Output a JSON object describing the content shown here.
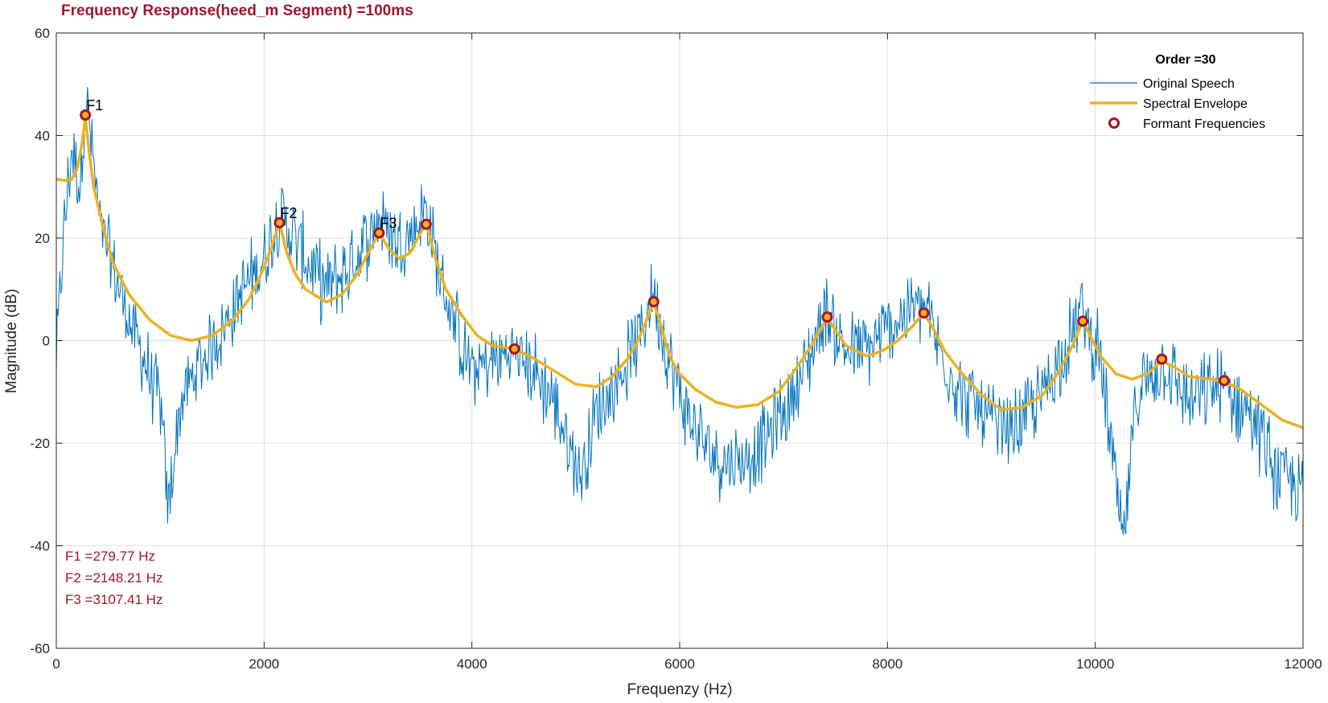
{
  "chart_data": {
    "type": "line",
    "title": "Frequency Response(heed_m Segment) =100ms",
    "xlabel": "Frequenzy (Hz)",
    "ylabel": "Magnitude (dB)",
    "xlim": [
      0,
      12000
    ],
    "ylim": [
      -60,
      60
    ],
    "xticks": [
      0,
      2000,
      4000,
      6000,
      8000,
      10000,
      12000
    ],
    "xtick_labels": [
      "0",
      "2000",
      "4000",
      "6000",
      "8000",
      "10000",
      "12000"
    ],
    "yticks": [
      -60,
      -40,
      -20,
      0,
      20,
      40,
      60
    ],
    "ytick_labels": [
      "-60",
      "-40",
      "-20",
      "0",
      "20",
      "40",
      "60"
    ],
    "grid": true,
    "legend": {
      "title": "Order =30",
      "placement": "top-right",
      "entries": [
        "Original Speech",
        "Spectral Envelope",
        "Formant Frequencies"
      ]
    },
    "series": [
      {
        "name": "Original Speech",
        "color": "#0072bd",
        "kind": "noisy-spectrum",
        "anchors": [
          [
            0,
            -4
          ],
          [
            60,
            18
          ],
          [
            150,
            38
          ],
          [
            230,
            30
          ],
          [
            279.77,
            48
          ],
          [
            330,
            40
          ],
          [
            420,
            22
          ],
          [
            550,
            14
          ],
          [
            700,
            4
          ],
          [
            850,
            -4
          ],
          [
            1000,
            -12
          ],
          [
            1075,
            -33
          ],
          [
            1200,
            -12
          ],
          [
            1400,
            -4
          ],
          [
            1600,
            2
          ],
          [
            1800,
            10
          ],
          [
            2000,
            16
          ],
          [
            2150,
            25
          ],
          [
            2300,
            20
          ],
          [
            2450,
            14
          ],
          [
            2600,
            10
          ],
          [
            2800,
            14
          ],
          [
            3000,
            20
          ],
          [
            3107.41,
            24
          ],
          [
            3300,
            19
          ],
          [
            3450,
            22
          ],
          [
            3550,
            26
          ],
          [
            3700,
            12
          ],
          [
            3850,
            2
          ],
          [
            4000,
            -6
          ],
          [
            4200,
            -4
          ],
          [
            4400,
            -2
          ],
          [
            4600,
            -6
          ],
          [
            4800,
            -12
          ],
          [
            4950,
            -22
          ],
          [
            5050,
            -26
          ],
          [
            5200,
            -14
          ],
          [
            5400,
            -8
          ],
          [
            5600,
            0
          ],
          [
            5750,
            10
          ],
          [
            5900,
            -4
          ],
          [
            6100,
            -16
          ],
          [
            6300,
            -22
          ],
          [
            6550,
            -24
          ],
          [
            6800,
            -20
          ],
          [
            7000,
            -14
          ],
          [
            7200,
            -6
          ],
          [
            7400,
            6
          ],
          [
            7600,
            -2
          ],
          [
            7800,
            -2
          ],
          [
            8000,
            2
          ],
          [
            8200,
            6
          ],
          [
            8350,
            7
          ],
          [
            8500,
            -2
          ],
          [
            8700,
            -10
          ],
          [
            8900,
            -14
          ],
          [
            9100,
            -18
          ],
          [
            9300,
            -16
          ],
          [
            9500,
            -10
          ],
          [
            9700,
            -2
          ],
          [
            9880,
            6
          ],
          [
            10050,
            -4
          ],
          [
            10270,
            -40
          ],
          [
            10400,
            -10
          ],
          [
            10650,
            -4
          ],
          [
            10900,
            -12
          ],
          [
            11200,
            -9
          ],
          [
            11500,
            -14
          ],
          [
            11750,
            -26
          ],
          [
            11900,
            -28
          ],
          [
            12000,
            -30
          ]
        ]
      },
      {
        "name": "Spectral Envelope",
        "color": "#edb120",
        "kind": "envelope",
        "anchors": [
          [
            0,
            31.5
          ],
          [
            100,
            31.2
          ],
          [
            150,
            31.5
          ],
          [
            200,
            33.5
          ],
          [
            245,
            38
          ],
          [
            279.77,
            43.5
          ],
          [
            310,
            38
          ],
          [
            360,
            30
          ],
          [
            450,
            22
          ],
          [
            550,
            15
          ],
          [
            700,
            9
          ],
          [
            900,
            4
          ],
          [
            1100,
            1
          ],
          [
            1300,
            0
          ],
          [
            1500,
            1
          ],
          [
            1700,
            4
          ],
          [
            1850,
            8
          ],
          [
            1950,
            12
          ],
          [
            2050,
            17
          ],
          [
            2148.21,
            23
          ],
          [
            2220,
            17
          ],
          [
            2300,
            13
          ],
          [
            2400,
            10
          ],
          [
            2600,
            7.5
          ],
          [
            2750,
            9
          ],
          [
            2900,
            13
          ],
          [
            3000,
            17
          ],
          [
            3107.41,
            21
          ],
          [
            3200,
            18
          ],
          [
            3300,
            16
          ],
          [
            3400,
            17
          ],
          [
            3480,
            20
          ],
          [
            3560,
            23
          ],
          [
            3650,
            16
          ],
          [
            3750,
            10
          ],
          [
            3900,
            5
          ],
          [
            4050,
            1
          ],
          [
            4200,
            -1
          ],
          [
            4400,
            -1.5
          ],
          [
            4600,
            -3.5
          ],
          [
            4800,
            -6
          ],
          [
            5000,
            -8.5
          ],
          [
            5200,
            -9
          ],
          [
            5350,
            -7
          ],
          [
            5500,
            -3.5
          ],
          [
            5600,
            0
          ],
          [
            5680,
            4
          ],
          [
            5750,
            7.5
          ],
          [
            5820,
            3
          ],
          [
            5900,
            -3
          ],
          [
            6000,
            -6.5
          ],
          [
            6150,
            -9.5
          ],
          [
            6350,
            -12
          ],
          [
            6550,
            -13
          ],
          [
            6750,
            -12.5
          ],
          [
            6950,
            -10
          ],
          [
            7100,
            -6
          ],
          [
            7250,
            -1.5
          ],
          [
            7350,
            2
          ],
          [
            7420,
            4.5
          ],
          [
            7500,
            2
          ],
          [
            7600,
            -1
          ],
          [
            7800,
            -3
          ],
          [
            7950,
            -2
          ],
          [
            8100,
            0
          ],
          [
            8250,
            3
          ],
          [
            8350,
            5.5
          ],
          [
            8450,
            2
          ],
          [
            8550,
            -2
          ],
          [
            8700,
            -6
          ],
          [
            8900,
            -10.5
          ],
          [
            9100,
            -13.5
          ],
          [
            9300,
            -13
          ],
          [
            9500,
            -10.5
          ],
          [
            9650,
            -6
          ],
          [
            9780,
            -1
          ],
          [
            9880,
            4
          ],
          [
            9950,
            1
          ],
          [
            10050,
            -3
          ],
          [
            10200,
            -6.5
          ],
          [
            10350,
            -7.5
          ],
          [
            10500,
            -6.5
          ],
          [
            10640,
            -4
          ],
          [
            10750,
            -5
          ],
          [
            10900,
            -7
          ],
          [
            11100,
            -7.5
          ],
          [
            11240,
            -8
          ],
          [
            11400,
            -9.5
          ],
          [
            11600,
            -12.5
          ],
          [
            11800,
            -15.5
          ],
          [
            12000,
            -17
          ]
        ]
      },
      {
        "name": "Formant Frequencies",
        "color": "#a2142f",
        "kind": "markers",
        "points": [
          [
            279.77,
            44
          ],
          [
            2148.21,
            23
          ],
          [
            3107.41,
            21
          ],
          [
            3560,
            22.7
          ],
          [
            4410,
            -1.6
          ],
          [
            5750,
            7.6
          ],
          [
            7420,
            4.6
          ],
          [
            8350,
            5.4
          ],
          [
            9880,
            3.8
          ],
          [
            10640,
            -3.6
          ],
          [
            11240,
            -7.8
          ]
        ]
      }
    ],
    "formant_labels": [
      {
        "text": "F1",
        "x": 279.77,
        "y": 44
      },
      {
        "text": "F2",
        "x": 2148.21,
        "y": 23
      },
      {
        "text": "F3",
        "x": 3107.41,
        "y": 21
      }
    ],
    "annotations": [
      "F1 =279.77 Hz",
      "F2 =2148.21 Hz",
      "F3 =3107.41 Hz"
    ]
  }
}
